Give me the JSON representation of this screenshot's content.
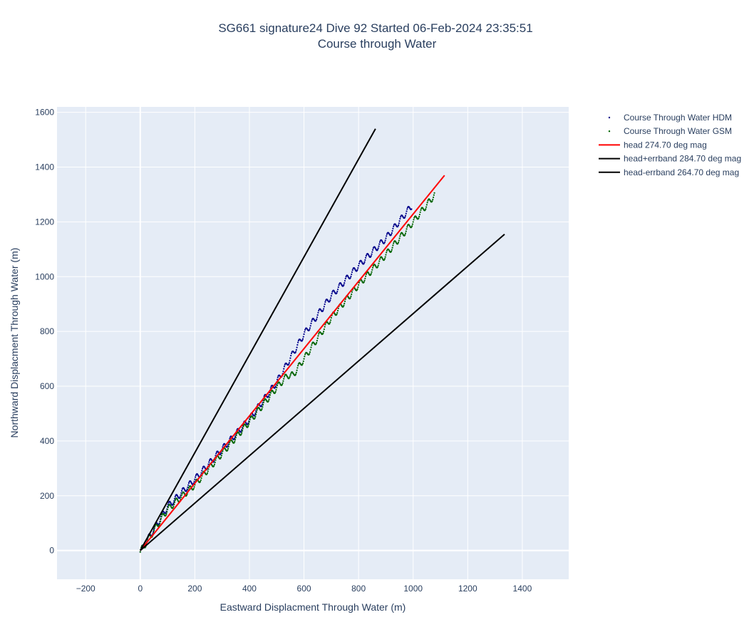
{
  "chart_data": {
    "type": "line",
    "title": "SG661 signature24 Dive 92 Started 06-Feb-2024 23:35:51",
    "subtitle": "Course through Water",
    "xlabel": "Eastward Displacment Through Water (m)",
    "ylabel": "Northward Displacment Through Water (m)",
    "xlim": [
      -305,
      1570
    ],
    "ylim": [
      -105,
      1620
    ],
    "xticks": [
      -200,
      0,
      200,
      400,
      600,
      800,
      1000,
      1200,
      1400
    ],
    "xtick_labels": [
      "−200",
      "0",
      "200",
      "400",
      "600",
      "800",
      "1000",
      "1200",
      "1400"
    ],
    "yticks": [
      0,
      200,
      400,
      600,
      800,
      1000,
      1200,
      1400,
      1600
    ],
    "ytick_labels": [
      "0",
      "200",
      "400",
      "600",
      "800",
      "1000",
      "1200",
      "1400",
      "1600"
    ],
    "grid": true,
    "legend_position": "right",
    "background": "#e5ecf6",
    "series": [
      {
        "name": "Course Through Water HDM",
        "kind": "scatter",
        "color": "#00008b",
        "anchors": [
          [
            0,
            -5
          ],
          [
            100,
            160
          ],
          [
            200,
            260
          ],
          [
            300,
            370
          ],
          [
            400,
            480
          ],
          [
            500,
            615
          ],
          [
            600,
            790
          ],
          [
            700,
            930
          ],
          [
            800,
            1040
          ],
          [
            900,
            1140
          ],
          [
            995,
            1260
          ]
        ],
        "wiggle_period": 25,
        "wiggle_amplitude": 12
      },
      {
        "name": "Course Through Water GSM",
        "kind": "scatter",
        "color": "#006400",
        "anchors": [
          [
            0,
            -5
          ],
          [
            100,
            150
          ],
          [
            200,
            240
          ],
          [
            300,
            355
          ],
          [
            400,
            470
          ],
          [
            500,
            595
          ],
          [
            540,
            640
          ],
          [
            560,
            640
          ],
          [
            600,
            700
          ],
          [
            700,
            850
          ],
          [
            800,
            970
          ],
          [
            900,
            1080
          ],
          [
            1000,
            1200
          ],
          [
            1080,
            1300
          ]
        ],
        "wiggle_period": 25,
        "wiggle_amplitude": 12
      },
      {
        "name": "head 274.70 deg mag",
        "kind": "line",
        "color": "#ff0000",
        "x": [
          0,
          1115
        ],
        "y": [
          0,
          1370
        ]
      },
      {
        "name": "head+errband 284.70 deg mag",
        "kind": "line",
        "color": "#000000",
        "x": [
          0,
          862
        ],
        "y": [
          0,
          1540
        ]
      },
      {
        "name": "head-errband 264.70 deg mag",
        "kind": "line",
        "color": "#000000",
        "x": [
          0,
          1335
        ],
        "y": [
          0,
          1155
        ]
      }
    ]
  }
}
